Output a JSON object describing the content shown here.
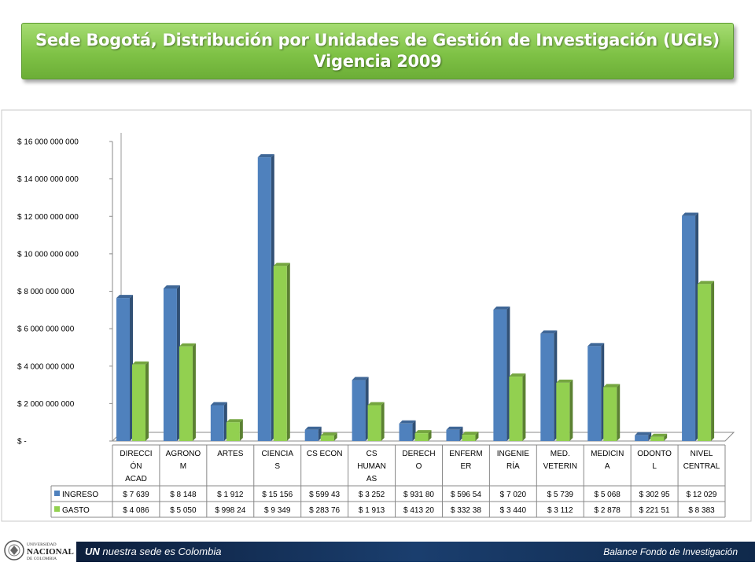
{
  "title": {
    "line1": "Sede Bogotá, Distribución por Unidades de Gestión de Investigación (UGIs)",
    "line2": "Vigencia 2009"
  },
  "chart_data": {
    "type": "bar",
    "categories": [
      [
        "DIRECCI",
        "ÓN",
        "ACAD"
      ],
      [
        "AGRONO",
        "M"
      ],
      [
        "ARTES"
      ],
      [
        "CIENCIA",
        "S"
      ],
      [
        "CS ECON"
      ],
      [
        "CS",
        "HUMAN",
        "AS"
      ],
      [
        "DERECH",
        "O"
      ],
      [
        "ENFERM",
        "ER"
      ],
      [
        "INGENIE",
        "RÍA"
      ],
      [
        "MED.",
        "VETERIN"
      ],
      [
        "MEDICIN",
        "A"
      ],
      [
        "ODONTO",
        "L"
      ],
      [
        "NIVEL",
        "CENTRAL"
      ]
    ],
    "series": [
      {
        "name": "INGRESO",
        "color": "#4f81bd",
        "values": [
          7639000000,
          8148000000,
          1912000000,
          15156000000,
          599430000,
          3252000000,
          931800000,
          596540000,
          7020000000,
          5739000000,
          5068000000,
          302950000,
          12029000000
        ],
        "table_labels": [
          "$ 7 639",
          "$ 8 148",
          "$ 1 912",
          "$ 15 156",
          "$ 599 43",
          "$ 3 252",
          "$ 931 80",
          "$ 596 54",
          "$ 7 020",
          "$ 5 739",
          "$ 5 068",
          "$ 302 95",
          "$ 12 029"
        ]
      },
      {
        "name": "GASTO",
        "color": "#92d050",
        "values": [
          4086000000,
          5050000000,
          998240000,
          9349000000,
          283760000,
          1913000000,
          413200000,
          332380000,
          3440000000,
          3112000000,
          2878000000,
          221510000,
          8383000000
        ],
        "table_labels": [
          "$ 4 086",
          "$ 5 050",
          "$ 998 24",
          "$ 9 349",
          "$ 283 76",
          "$ 1 913",
          "$ 413 20",
          "$ 332 38",
          "$ 3 440",
          "$ 3 112",
          "$ 2 878",
          "$ 221 51",
          "$ 8 383"
        ]
      }
    ],
    "ylim": [
      0,
      16000000000
    ],
    "yticks": [
      {
        "value": 0,
        "label": "$ -"
      },
      {
        "value": 2000000000,
        "label": "$ 2 000 000 000"
      },
      {
        "value": 4000000000,
        "label": "$ 4 000 000 000"
      },
      {
        "value": 6000000000,
        "label": "$ 6 000 000 000"
      },
      {
        "value": 8000000000,
        "label": "$ 8 000 000 000"
      },
      {
        "value": 10000000000,
        "label": "$ 10 000 000 000"
      },
      {
        "value": 12000000000,
        "label": "$ 12 000 000 000"
      },
      {
        "value": 14000000000,
        "label": "$ 14 000 000 000"
      },
      {
        "value": 16000000000,
        "label": "$ 16 000 000 000"
      }
    ],
    "grid": false,
    "legend": "data-table"
  },
  "footer": {
    "brand": "UN",
    "tagline": "nuestra sede es Colombia",
    "right_text": "Balance Fondo de Investigación",
    "logo_text_1": "UNIVERSIDAD",
    "logo_text_2": "NACIONAL",
    "logo_text_3": "DE COLOMBIA"
  }
}
